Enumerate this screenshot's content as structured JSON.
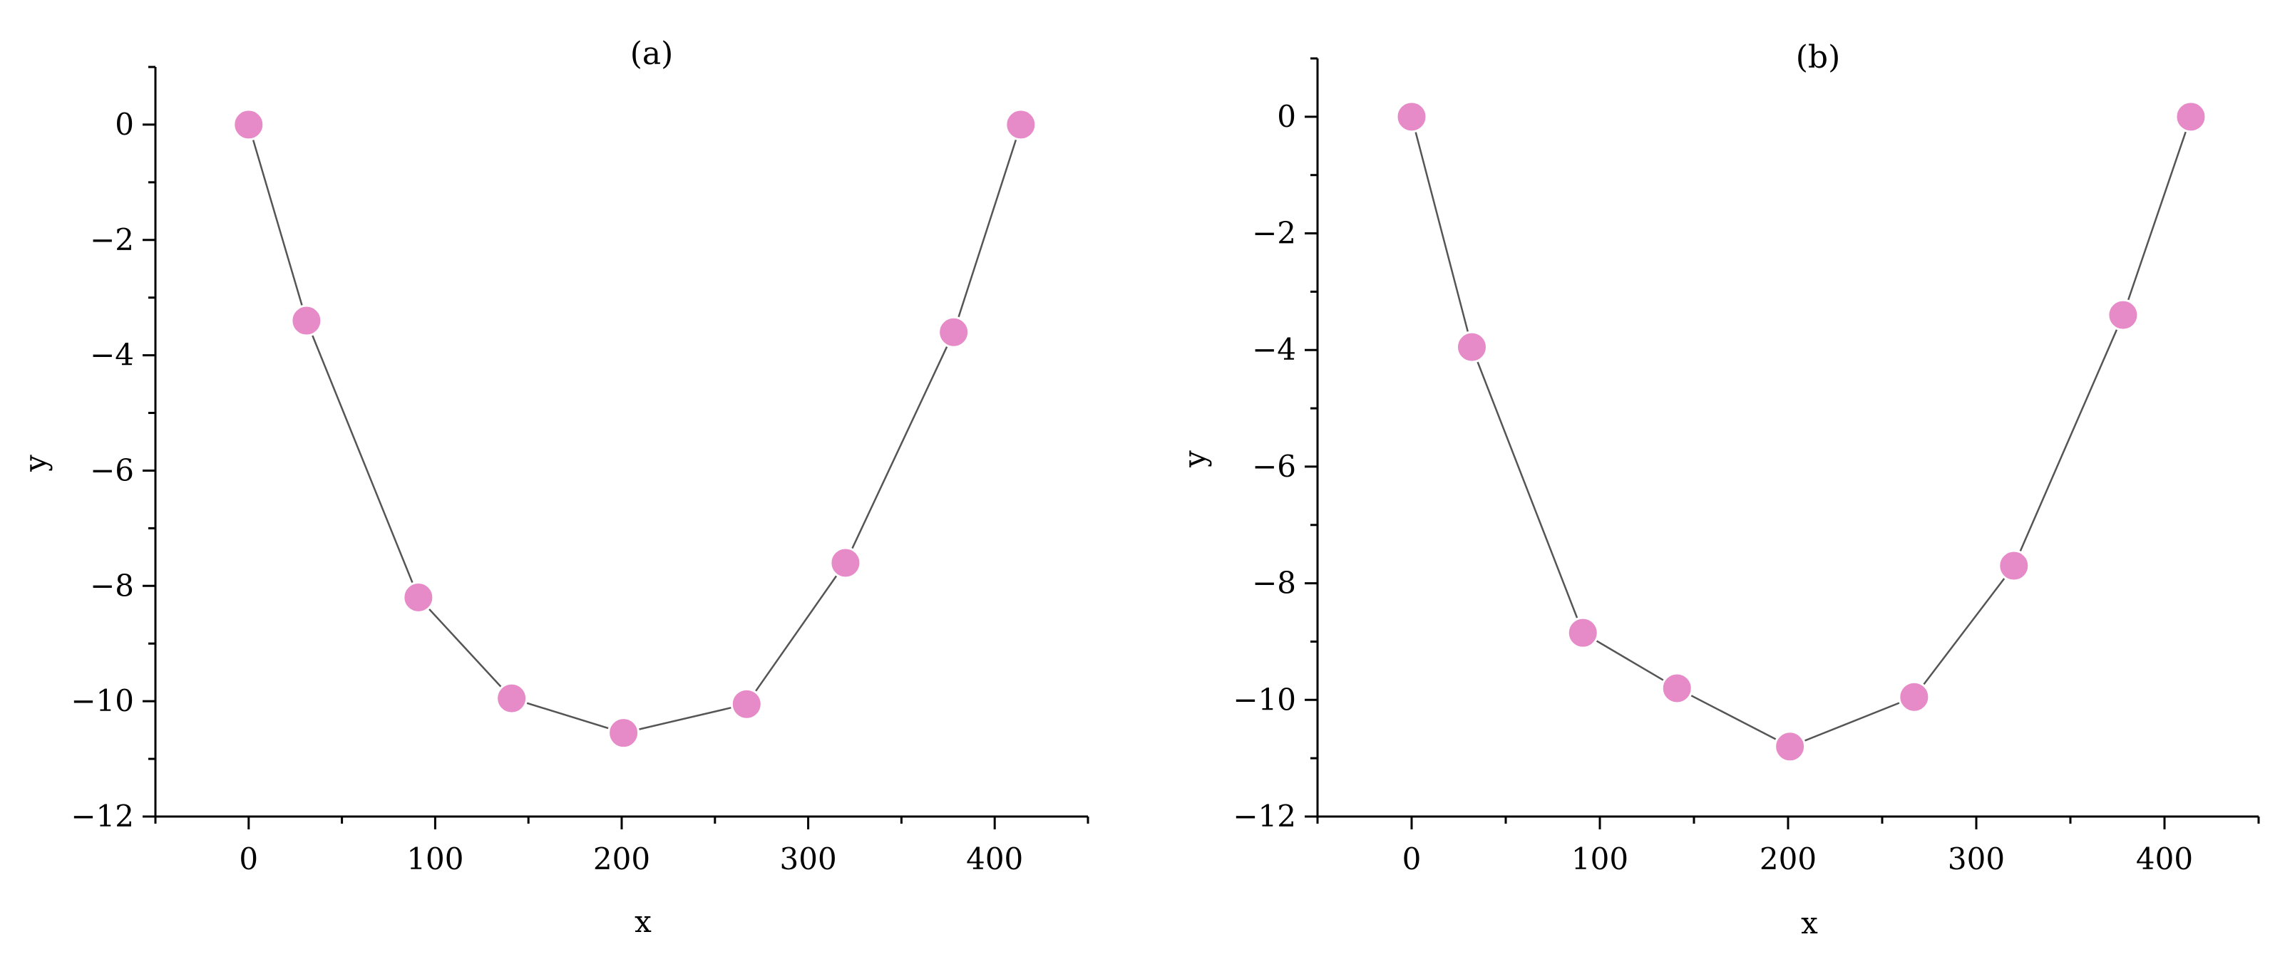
{
  "colors": {
    "marker": "#e68ac8",
    "line": "#555555",
    "axis": "#000000"
  },
  "chart_data": [
    {
      "type": "scatter",
      "title": "(a)",
      "xlabel": "x",
      "ylabel": "y",
      "xlim": [
        -50,
        450
      ],
      "ylim": [
        -12,
        1
      ],
      "xticks": [
        0,
        100,
        200,
        300,
        400
      ],
      "yticks": [
        0,
        -2,
        -4,
        -6,
        -8,
        -10,
        -12
      ],
      "x_minor_ticks": [
        -50,
        50,
        150,
        250,
        350,
        450
      ],
      "y_minor_ticks": [
        1,
        -1,
        -3,
        -5,
        -7,
        -9,
        -11
      ],
      "grid": false,
      "connected": true,
      "series": [
        {
          "x": [
            0,
            31,
            91,
            141,
            201,
            267,
            320,
            378,
            414
          ],
          "y": [
            0,
            -3.4,
            -8.2,
            -9.95,
            -10.55,
            -10.05,
            -7.6,
            -3.6,
            0
          ]
        }
      ]
    },
    {
      "type": "scatter",
      "title": "(b)",
      "xlabel": "x",
      "ylabel": "y",
      "xlim": [
        -50,
        450
      ],
      "ylim": [
        -12,
        1
      ],
      "xticks": [
        0,
        100,
        200,
        300,
        400
      ],
      "yticks": [
        0,
        -2,
        -4,
        -6,
        -8,
        -10,
        -12
      ],
      "x_minor_ticks": [
        -50,
        50,
        150,
        250,
        350,
        450
      ],
      "y_minor_ticks": [
        1,
        -1,
        -3,
        -5,
        -7,
        -9,
        -11
      ],
      "grid": false,
      "connected": true,
      "series": [
        {
          "x": [
            0,
            32,
            91,
            141,
            201,
            267,
            320,
            378,
            414
          ],
          "y": [
            0,
            -3.95,
            -8.85,
            -9.8,
            -10.8,
            -9.95,
            -7.7,
            -3.4,
            0
          ]
        }
      ]
    }
  ]
}
